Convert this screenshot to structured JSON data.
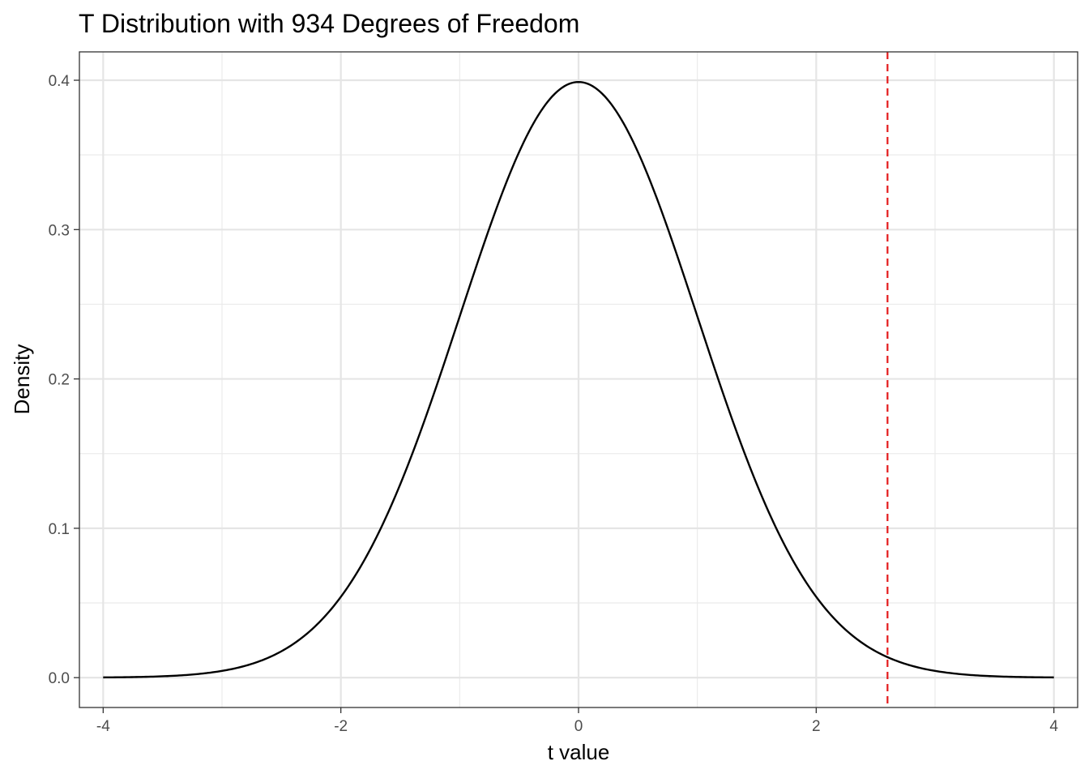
{
  "chart_data": {
    "type": "line",
    "title": "T Distribution with 934 Degrees of Freedom",
    "xlabel": "t value",
    "ylabel": "Density",
    "degrees_of_freedom": 934,
    "xlim": [
      -4.2,
      4.2
    ],
    "ylim": [
      -0.02,
      0.419
    ],
    "x_ticks": [
      -4,
      -2,
      0,
      2,
      4
    ],
    "x_tick_labels": [
      "-4",
      "-2",
      "0",
      "2",
      "4"
    ],
    "y_ticks": [
      0.0,
      0.1,
      0.2,
      0.3,
      0.4
    ],
    "y_tick_labels": [
      "0.0",
      "0.1",
      "0.2",
      "0.3",
      "0.4"
    ],
    "grid": true,
    "series": [
      {
        "color": "#000000",
        "x": [
          -4.0,
          -3.75,
          -3.5,
          -3.25,
          -3.0,
          -2.75,
          -2.5,
          -2.25,
          -2.0,
          -1.75,
          -1.5,
          -1.25,
          -1.0,
          -0.75,
          -0.5,
          -0.25,
          0.0,
          0.25,
          0.5,
          0.75,
          1.0,
          1.25,
          1.5,
          1.75,
          2.0,
          2.25,
          2.5,
          2.75,
          3.0,
          3.25,
          3.5,
          3.75,
          4.0
        ],
        "y": [
          0.0001,
          0.0004,
          0.0009,
          0.002,
          0.0045,
          0.0091,
          0.0175,
          0.0317,
          0.054,
          0.0862,
          0.1295,
          0.1826,
          0.242,
          0.3011,
          0.3521,
          0.3867,
          0.3988,
          0.3867,
          0.3521,
          0.3011,
          0.242,
          0.1826,
          0.1295,
          0.0862,
          0.054,
          0.0317,
          0.0175,
          0.0091,
          0.0045,
          0.002,
          0.0009,
          0.0004,
          0.0001
        ]
      }
    ],
    "reference_line": {
      "x": 2.6,
      "style": "dashed",
      "color": "#e41a1c"
    }
  }
}
